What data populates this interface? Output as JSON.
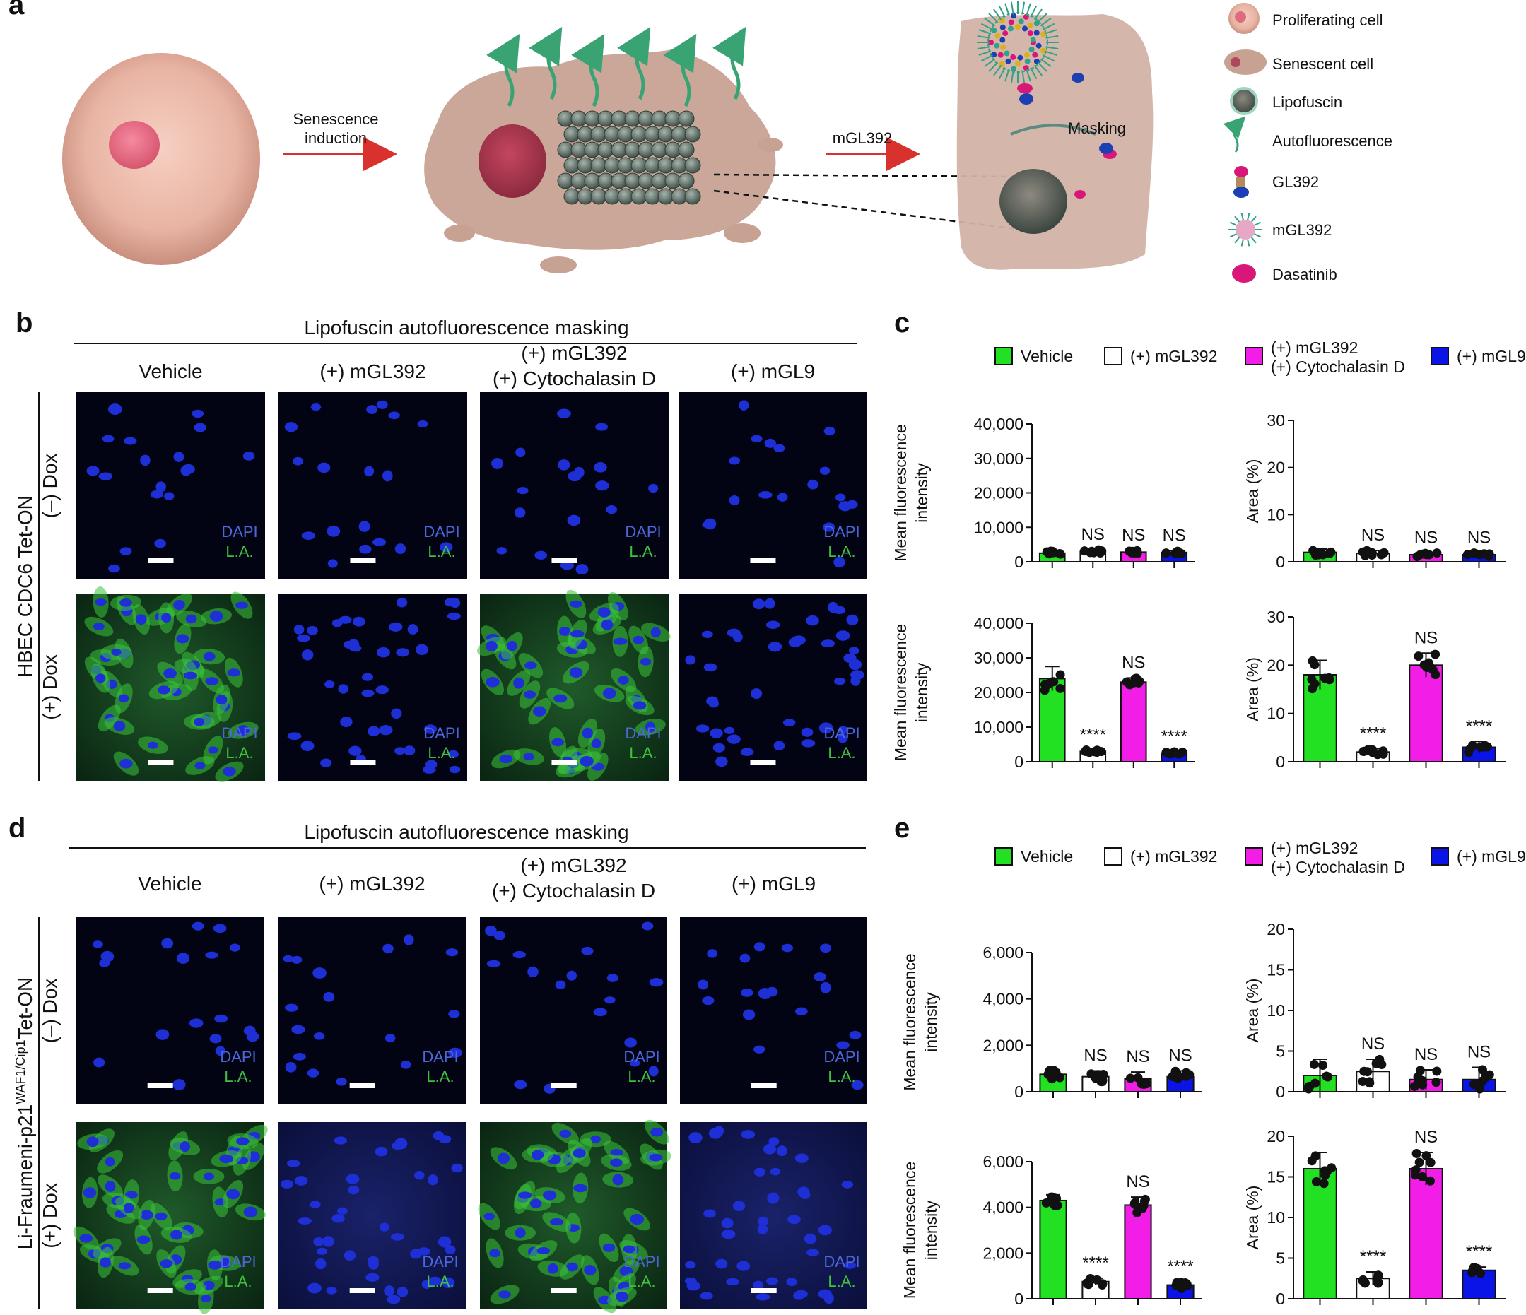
{
  "panels": {
    "a": "a",
    "b": "b",
    "c": "c",
    "d": "d",
    "e": "e"
  },
  "schematic": {
    "arrow1": [
      "Senescence",
      "induction"
    ],
    "arrow2": "mGL392",
    "masking": "Masking",
    "legend": [
      "Proliferating cell",
      "Senescent cell",
      "Lipofuscin",
      "Autofluorescence",
      "GL392",
      "mGL392",
      "Dasatinib"
    ]
  },
  "microscopy": {
    "header": "Lipofuscin autofluorescence masking",
    "columns": [
      [
        "Vehicle"
      ],
      [
        "(+) mGL392"
      ],
      [
        "(+) mGL392",
        "(+) Cytochalasin D"
      ],
      [
        "(+) mGL9"
      ]
    ],
    "row_labels": [
      "(–) Dox",
      "(+) Dox"
    ],
    "b_side_label": "HBEC CDC6 Tet-ON",
    "d_side_label": "Li-Fraumeni-p21",
    "d_side_sup": "WAF1/Cip1",
    "d_side_suffix": "Tet-ON",
    "stain1": "DAPI",
    "stain2": "L.A.",
    "colors": {
      "dapi": "#1e2fd6",
      "la": "#3bc23b",
      "bg": "#020414"
    }
  },
  "legend": {
    "items": [
      {
        "label": [
          "Vehicle"
        ],
        "color": "#22e022"
      },
      {
        "label": [
          "(+) mGL392"
        ],
        "color": "#ffffff"
      },
      {
        "label": [
          "(+) mGL392",
          "(+) Cytochalasin D"
        ],
        "color": "#f21ee8"
      },
      {
        "label": [
          "(+) mGL9"
        ],
        "color": "#0a14e6"
      }
    ]
  },
  "chart_data": [
    {
      "type": "bar",
      "panel": "c",
      "row": "(–) Dox",
      "ylabel": [
        "Mean fluorescence",
        "intensity"
      ],
      "yticks": [
        "0",
        "10,000",
        "20,000",
        "30,000",
        "40,000"
      ],
      "ylim": [
        0,
        40000
      ],
      "values": [
        2500,
        3000,
        2800,
        2700
      ],
      "err": [
        600,
        500,
        500,
        500
      ],
      "sig": [
        "",
        "NS",
        "NS",
        "NS"
      ]
    },
    {
      "type": "bar",
      "panel": "c",
      "row": "(–) Dox",
      "ylabel": [
        "Area (%)"
      ],
      "yticks": [
        "0",
        "10",
        "20",
        "30"
      ],
      "ylim": [
        0,
        30
      ],
      "values": [
        2,
        1.8,
        1.5,
        1.5
      ],
      "err": [
        0.7,
        0.6,
        0.4,
        0.4
      ],
      "sig": [
        "",
        "NS",
        "NS",
        "NS"
      ]
    },
    {
      "type": "bar",
      "panel": "c",
      "row": "(+) Dox",
      "ylabel": [
        "Mean fluorescence",
        "intensity"
      ],
      "yticks": [
        "0",
        "10,000",
        "20,000",
        "30,000",
        "40,000"
      ],
      "ylim": [
        0,
        40000
      ],
      "values": [
        24000,
        3000,
        23000,
        2500
      ],
      "err": [
        3500,
        400,
        1200,
        400
      ],
      "sig": [
        "",
        "****",
        "NS",
        "****"
      ]
    },
    {
      "type": "bar",
      "panel": "c",
      "row": "(+) Dox",
      "ylabel": [
        "Area (%)"
      ],
      "yticks": [
        "0",
        "10",
        "20",
        "30"
      ],
      "ylim": [
        0,
        30
      ],
      "values": [
        18,
        2,
        20,
        3
      ],
      "err": [
        3,
        0.7,
        2.5,
        1.2
      ],
      "sig": [
        "",
        "****",
        "NS",
        "****"
      ]
    },
    {
      "type": "bar",
      "panel": "e",
      "row": "(–) Dox",
      "ylabel": [
        "Mean fluorescence",
        "intensity"
      ],
      "yticks": [
        "0",
        "2,000",
        "4,000",
        "6,000"
      ],
      "ylim": [
        0,
        6000
      ],
      "values": [
        750,
        650,
        550,
        650
      ],
      "err": [
        200,
        250,
        300,
        250
      ],
      "sig": [
        "",
        "NS",
        "NS",
        "NS"
      ]
    },
    {
      "type": "bar",
      "panel": "e",
      "row": "(–) Dox",
      "ylabel": [
        "Area (%)"
      ],
      "yticks": [
        "0",
        "5",
        "10",
        "15",
        "20"
      ],
      "ylim": [
        0,
        20
      ],
      "values": [
        2,
        2.5,
        1.5,
        1.5
      ],
      "err": [
        2,
        1.5,
        1.2,
        1.5
      ],
      "sig": [
        "",
        "NS",
        "NS",
        "NS"
      ]
    },
    {
      "type": "bar",
      "panel": "e",
      "row": "(+) Dox",
      "ylabel": [
        "Mean fluorescence",
        "intensity"
      ],
      "yticks": [
        "0",
        "2,000",
        "4,000",
        "6,000"
      ],
      "ylim": [
        0,
        6000
      ],
      "values": [
        4300,
        750,
        4100,
        600
      ],
      "err": [
        250,
        150,
        350,
        150
      ],
      "sig": [
        "",
        "****",
        "NS",
        "****"
      ]
    },
    {
      "type": "bar",
      "panel": "e",
      "row": "(+) Dox",
      "ylabel": [
        "Area (%)"
      ],
      "yticks": [
        "0",
        "5",
        "10",
        "15",
        "20"
      ],
      "ylim": [
        0,
        20
      ],
      "values": [
        16,
        2.5,
        16,
        3.5
      ],
      "err": [
        2,
        0.8,
        2,
        0.4
      ],
      "sig": [
        "",
        "****",
        "NS",
        "****"
      ]
    }
  ]
}
